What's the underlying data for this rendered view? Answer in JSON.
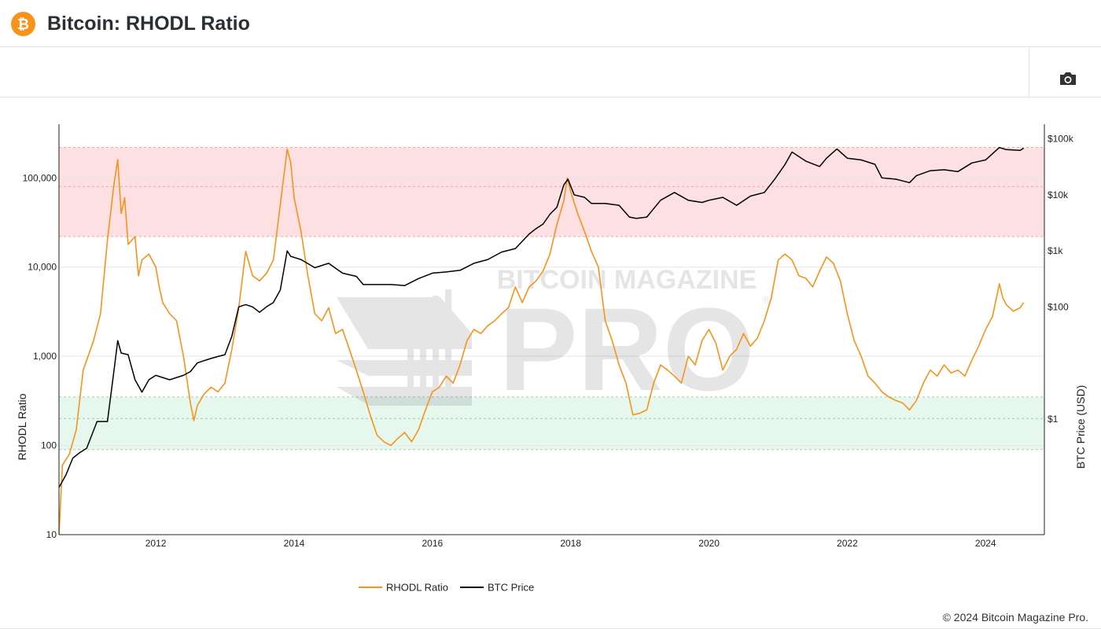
{
  "page": {
    "title": "Bitcoin: RHODL Ratio",
    "logo_icon": "bitcoin-logo-icon",
    "toolbar_icon": "camera-icon",
    "copyright": "© 2024 Bitcoin Magazine Pro."
  },
  "colors": {
    "rhodl": "#f7931a",
    "price": "#000000",
    "top_band": "#fde0e2",
    "bottom_band": "#e6f7ee",
    "logo": "#f7931a"
  },
  "watermark": {
    "line1": "BITCOIN MAGAZINE",
    "line2": "PRO",
    "mark": "®"
  },
  "chart_data": {
    "type": "line",
    "title": "Bitcoin: RHODL Ratio",
    "xlabel": "",
    "ylabel": "RHODL Ratio",
    "y2label": "BTC Price (USD)",
    "yscale": "log",
    "y2scale": "log",
    "ylim": [
      10,
      400000
    ],
    "y2lim": [
      0.0086,
      182000
    ],
    "xlim": [
      2010.6,
      2024.85
    ],
    "x_ticks": [
      2012,
      2014,
      2016,
      2018,
      2020,
      2022,
      2024
    ],
    "x_tick_labels": [
      "2012",
      "2014",
      "2016",
      "2018",
      "2020",
      "2022",
      "2024"
    ],
    "y_ticks": [
      10,
      100,
      1000,
      10000,
      100000
    ],
    "y_tick_labels": [
      "10",
      "100",
      "1,000",
      "10,000",
      "100,000"
    ],
    "y2_ticks": [
      1,
      100,
      1000,
      10000,
      100000
    ],
    "y2_tick_labels": [
      "$1",
      "$100",
      "$1k",
      "$10k",
      "$100k"
    ],
    "bands": [
      {
        "name": "top",
        "range": [
          22000,
          220000
        ],
        "inner_line": 80000
      },
      {
        "name": "bottom",
        "range": [
          90,
          350
        ],
        "inner_line": 200
      }
    ],
    "legend": {
      "position": "bottom-center",
      "entries": [
        "RHODL Ratio",
        "BTC Price"
      ]
    },
    "series": [
      {
        "name": "RHODL Ratio",
        "axis": "left",
        "x": [
          2010.6,
          2010.65,
          2010.75,
          2010.85,
          2010.95,
          2011.1,
          2011.2,
          2011.3,
          2011.4,
          2011.45,
          2011.5,
          2011.55,
          2011.6,
          2011.7,
          2011.75,
          2011.8,
          2011.9,
          2012.0,
          2012.05,
          2012.1,
          2012.2,
          2012.3,
          2012.4,
          2012.5,
          2012.55,
          2012.6,
          2012.7,
          2012.8,
          2012.9,
          2013.0,
          2013.1,
          2013.2,
          2013.3,
          2013.4,
          2013.5,
          2013.6,
          2013.7,
          2013.8,
          2013.9,
          2013.95,
          2014.0,
          2014.1,
          2014.2,
          2014.3,
          2014.4,
          2014.5,
          2014.6,
          2014.7,
          2014.8,
          2014.9,
          2015.0,
          2015.1,
          2015.2,
          2015.3,
          2015.4,
          2015.5,
          2015.6,
          2015.7,
          2015.8,
          2015.9,
          2016.0,
          2016.1,
          2016.2,
          2016.3,
          2016.4,
          2016.5,
          2016.6,
          2016.7,
          2016.8,
          2016.9,
          2017.0,
          2017.1,
          2017.2,
          2017.3,
          2017.4,
          2017.5,
          2017.6,
          2017.7,
          2017.8,
          2017.9,
          2017.95,
          2018.0,
          2018.1,
          2018.2,
          2018.3,
          2018.4,
          2018.5,
          2018.6,
          2018.7,
          2018.8,
          2018.9,
          2019.0,
          2019.1,
          2019.2,
          2019.3,
          2019.4,
          2019.5,
          2019.6,
          2019.7,
          2019.8,
          2019.9,
          2020.0,
          2020.1,
          2020.2,
          2020.3,
          2020.4,
          2020.5,
          2020.6,
          2020.7,
          2020.8,
          2020.9,
          2021.0,
          2021.1,
          2021.2,
          2021.3,
          2021.4,
          2021.5,
          2021.6,
          2021.7,
          2021.8,
          2021.9,
          2022.0,
          2022.1,
          2022.2,
          2022.3,
          2022.4,
          2022.5,
          2022.6,
          2022.7,
          2022.8,
          2022.9,
          2023.0,
          2023.1,
          2023.2,
          2023.3,
          2023.4,
          2023.5,
          2023.6,
          2023.7,
          2023.8,
          2023.9,
          2024.0,
          2024.1,
          2024.2,
          2024.25,
          2024.3,
          2024.4,
          2024.5,
          2024.55
        ],
        "y": [
          10,
          60,
          80,
          150,
          700,
          1500,
          3000,
          20000,
          90000,
          160000,
          40000,
          60000,
          18000,
          22000,
          8000,
          12000,
          14000,
          10000,
          6000,
          4000,
          3000,
          2500,
          1000,
          300,
          190,
          280,
          380,
          450,
          400,
          500,
          1200,
          3500,
          15000,
          8000,
          7000,
          8500,
          12000,
          50000,
          210000,
          150000,
          60000,
          25000,
          8000,
          3000,
          2500,
          3500,
          1800,
          2000,
          1200,
          700,
          400,
          220,
          130,
          110,
          100,
          120,
          140,
          110,
          150,
          250,
          400,
          450,
          600,
          500,
          800,
          1500,
          2000,
          1800,
          2200,
          2500,
          3000,
          3500,
          6000,
          4000,
          6000,
          7000,
          9000,
          14000,
          30000,
          55000,
          100000,
          70000,
          40000,
          25000,
          15000,
          10000,
          2500,
          1500,
          800,
          500,
          220,
          230,
          250,
          500,
          800,
          700,
          600,
          500,
          1000,
          800,
          1500,
          2000,
          1400,
          700,
          1000,
          1200,
          1800,
          1300,
          1600,
          2500,
          4500,
          12000,
          14000,
          12000,
          8000,
          7500,
          6000,
          9000,
          13000,
          11000,
          7000,
          3000,
          1500,
          1000,
          600,
          500,
          400,
          350,
          320,
          300,
          250,
          320,
          500,
          700,
          600,
          800,
          650,
          700,
          600,
          900,
          1300,
          2000,
          2800,
          6500,
          4500,
          3800,
          3200,
          3500,
          4000
        ]
      },
      {
        "name": "BTC Price",
        "axis": "right",
        "x": [
          2010.6,
          2010.7,
          2010.8,
          2010.9,
          2011.0,
          2011.15,
          2011.3,
          2011.4,
          2011.45,
          2011.5,
          2011.6,
          2011.7,
          2011.8,
          2011.9,
          2012.0,
          2012.2,
          2012.4,
          2012.5,
          2012.6,
          2012.7,
          2012.8,
          2012.9,
          2013.0,
          2013.1,
          2013.2,
          2013.3,
          2013.4,
          2013.5,
          2013.6,
          2013.7,
          2013.8,
          2013.9,
          2013.95,
          2014.1,
          2014.3,
          2014.5,
          2014.7,
          2014.9,
          2015.0,
          2015.2,
          2015.4,
          2015.6,
          2015.8,
          2016.0,
          2016.2,
          2016.4,
          2016.6,
          2016.8,
          2017.0,
          2017.2,
          2017.4,
          2017.5,
          2017.6,
          2017.7,
          2017.8,
          2017.9,
          2017.96,
          2018.05,
          2018.2,
          2018.3,
          2018.5,
          2018.7,
          2018.85,
          2018.95,
          2019.1,
          2019.3,
          2019.5,
          2019.7,
          2019.9,
          2020.0,
          2020.2,
          2020.4,
          2020.6,
          2020.8,
          2020.95,
          2021.1,
          2021.2,
          2021.4,
          2021.6,
          2021.7,
          2021.85,
          2022.0,
          2022.2,
          2022.4,
          2022.5,
          2022.7,
          2022.9,
          2023.0,
          2023.2,
          2023.4,
          2023.6,
          2023.8,
          2024.0,
          2024.2,
          2024.3,
          2024.5,
          2024.55
        ],
        "y": [
          0.06,
          0.1,
          0.2,
          0.25,
          0.3,
          0.9,
          0.9,
          8,
          25,
          15,
          14,
          5,
          3,
          5,
          6,
          5,
          6,
          7,
          10,
          11,
          12,
          13,
          14,
          30,
          100,
          110,
          100,
          80,
          100,
          120,
          200,
          1000,
          800,
          700,
          500,
          600,
          400,
          350,
          250,
          250,
          250,
          240,
          320,
          400,
          420,
          450,
          600,
          700,
          950,
          1100,
          2000,
          2500,
          3000,
          4500,
          6000,
          15000,
          19000,
          10000,
          9000,
          7000,
          7000,
          6500,
          4000,
          3800,
          4000,
          8000,
          11000,
          8000,
          7300,
          8000,
          9000,
          6500,
          9500,
          11000,
          19000,
          35000,
          58000,
          40000,
          32000,
          45000,
          66000,
          45000,
          42000,
          35000,
          20000,
          19000,
          16500,
          22000,
          27000,
          28000,
          26000,
          37000,
          42000,
          70000,
          64000,
          62000,
          68000
        ]
      }
    ]
  }
}
